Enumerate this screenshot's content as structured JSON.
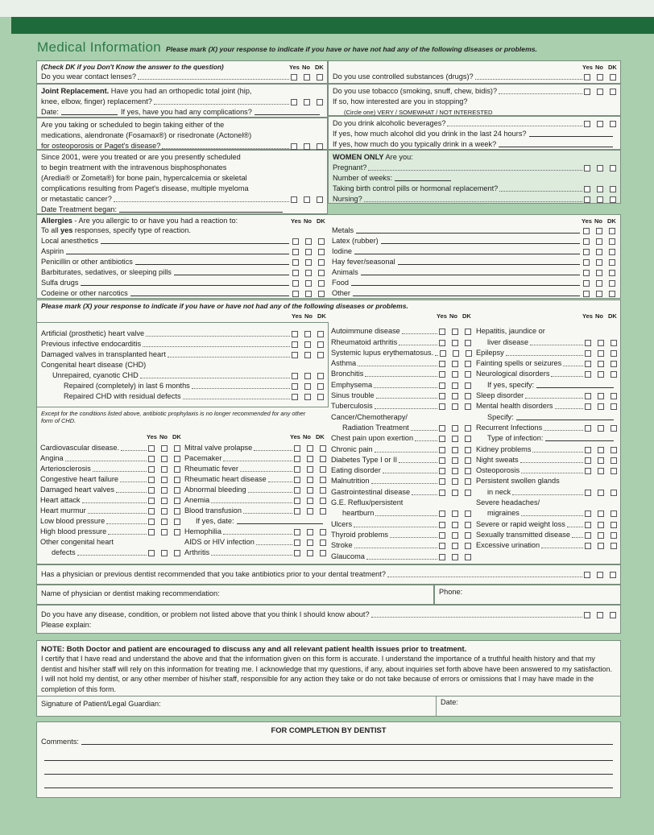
{
  "title": "Medical Information",
  "subtitle": "Please mark (X) your response to indicate if you have or have not had any of the following diseases or problems.",
  "cols": {
    "yes": "Yes",
    "no": "No",
    "dk": "DK"
  },
  "top_left": {
    "dk_note": "(Check DK if you Don't Know the answer to the question)",
    "contact": "Do you wear contact lenses?",
    "joint_bold": "Joint Replacement.",
    "joint_text1": " Have you had an orthopedic total joint (hip,",
    "joint_text2": "knee, elbow, finger) replacement?",
    "joint_date": "Date:",
    "joint_complications": "If yes, have you had any complications?",
    "meds1": "Are you taking or scheduled to begin taking either of the",
    "meds2": "medications, alendronate (Fosamax®) or risedronate (Actonel®)",
    "meds3": "for osteoporosis or Paget's disease?",
    "bis1": "Since 2001, were you treated or are you presently scheduled",
    "bis2": "to begin treatment with the intravenous bisphosphonates",
    "bis3": "(Aredia® or Zometa®) for bone pain, hypercalcemia or skeletal",
    "bis4": "complications resulting from Paget's disease, multiple myeloma",
    "bis5": "or metastatic cancer?",
    "bis_date": "Date Treatment began:"
  },
  "top_right": {
    "drugs": "Do you use controlled substances (drugs)?",
    "tobacco": "Do you use tobacco (smoking, snuff, chew, bidis)?",
    "tobacco_q": "If so, how interested are you in stopping?",
    "tobacco_circle": "(Circle one)  VERY  /  SOMEWHAT  /  NOT INTERESTED",
    "alcohol": "Do you drink alcoholic beverages?",
    "alcohol_24": "If yes, how much alcohol did you drink in the last 24 hours?",
    "alcohol_week": "If yes, how much do you typically drink in a week?",
    "women_bold": "WOMEN ONLY",
    "women_text": "  Are you:",
    "pregnant": "Pregnant?",
    "weeks": "Number of weeks:",
    "birth_control": "Taking birth control pills or hormonal replacement?",
    "nursing": "Nursing?"
  },
  "allergies": {
    "bold": "Allergies",
    "text": " - Are you allergic to or have you had a reaction to:",
    "text2a": "To all ",
    "text2b": "yes",
    "text2c": " responses, specify type of reaction.",
    "left": [
      "Local anesthetics",
      "Aspirin",
      "Penicillin or other antibiotics",
      "Barbiturates, sedatives, or sleeping pills",
      "Sulfa drugs",
      "Codeine or other narcotics"
    ],
    "right": [
      "Metals",
      "Latex (rubber)",
      "Iodine",
      "Hay fever/seasonal",
      "Animals",
      "Food",
      "Other"
    ]
  },
  "diseases": {
    "header": "Please mark (X) your response to indicate if you have or have not had any of the following diseases or problems.",
    "chd": [
      {
        "label": "Artificial (prosthetic) heart valve",
        "kind": "check"
      },
      {
        "label": "Previous infective endocarditis",
        "kind": "check"
      },
      {
        "label": "Damaged valves in transplanted heart",
        "kind": "check"
      },
      {
        "label": "Congenital heart disease (CHD)",
        "kind": "text"
      },
      {
        "label": "Unrepaired, cyanotic CHD",
        "kind": "check",
        "indent": 1
      },
      {
        "label": "Repaired (completely) in last 6 months",
        "kind": "check",
        "indent": 2
      },
      {
        "label": "Repaired CHD with residual defects",
        "kind": "check",
        "indent": 2
      }
    ],
    "chd_note": "Except for the conditions listed above, antibiotic prophylaxis is no longer recommended for any other form of CHD.",
    "col1": [
      {
        "label": "Cardiovascular disease.",
        "kind": "check"
      },
      {
        "label": "Angina",
        "kind": "check"
      },
      {
        "label": "Arteriosclerosis",
        "kind": "check"
      },
      {
        "label": "Congestive heart failure",
        "kind": "check"
      },
      {
        "label": "Damaged heart valves",
        "kind": "check"
      },
      {
        "label": "Heart attack",
        "kind": "check"
      },
      {
        "label": "Heart murmur",
        "kind": "check"
      },
      {
        "label": "Low blood pressure",
        "kind": "check"
      },
      {
        "label": "High blood pressure",
        "kind": "check"
      },
      {
        "label": "Other congenital heart",
        "kind": "text"
      },
      {
        "label": "defects",
        "kind": "check",
        "indent": 1
      }
    ],
    "col2": [
      {
        "label": "Mitral valve prolapse",
        "kind": "check"
      },
      {
        "label": "Pacemaker",
        "kind": "check"
      },
      {
        "label": "Rheumatic fever",
        "kind": "check"
      },
      {
        "label": "Rheumatic heart disease",
        "kind": "check"
      },
      {
        "label": "Abnormal bleeding",
        "kind": "check"
      },
      {
        "label": "Anemia",
        "kind": "check"
      },
      {
        "label": "Blood transfusion",
        "kind": "check"
      },
      {
        "label": "If yes, date:",
        "kind": "fill",
        "indent": 1
      },
      {
        "label": "Hemophilia",
        "kind": "check"
      },
      {
        "label": "AIDS or HIV infection",
        "kind": "check"
      },
      {
        "label": "Arthritis",
        "kind": "check"
      }
    ],
    "col3": [
      {
        "label": "Autoimmune disease",
        "kind": "check"
      },
      {
        "label": "Rheumatoid arthritis",
        "kind": "check"
      },
      {
        "label": "Systemic lupus erythematosus.",
        "kind": "check"
      },
      {
        "label": "Asthma",
        "kind": "check"
      },
      {
        "label": "Bronchitis",
        "kind": "check"
      },
      {
        "label": "Emphysema",
        "kind": "check"
      },
      {
        "label": "Sinus trouble",
        "kind": "check"
      },
      {
        "label": "Tuberculosis",
        "kind": "check"
      },
      {
        "label": "Cancer/Chemotherapy/",
        "kind": "text"
      },
      {
        "label": "Radiation Treatment",
        "kind": "check",
        "indent": 1
      },
      {
        "label": "Chest pain upon exertion",
        "kind": "check"
      },
      {
        "label": "Chronic pain",
        "kind": "check"
      },
      {
        "label": "Diabetes  Type I  or  II",
        "kind": "check"
      },
      {
        "label": "Eating disorder",
        "kind": "check"
      },
      {
        "label": "Malnutrition",
        "kind": "check"
      },
      {
        "label": "Gastrointestinal disease",
        "kind": "check"
      },
      {
        "label": "G.E. Reflux/persistent",
        "kind": "text"
      },
      {
        "label": "heartburn",
        "kind": "check",
        "indent": 1
      },
      {
        "label": "Ulcers",
        "kind": "check"
      },
      {
        "label": "Thyroid problems",
        "kind": "check"
      },
      {
        "label": "Stroke",
        "kind": "check"
      },
      {
        "label": "Glaucoma",
        "kind": "check"
      }
    ],
    "col4": [
      {
        "label": "Hepatitis, jaundice or",
        "kind": "text"
      },
      {
        "label": "liver disease",
        "kind": "check",
        "indent": 1
      },
      {
        "label": "Epilepsy",
        "kind": "check"
      },
      {
        "label": "Fainting spells or seizures",
        "kind": "check"
      },
      {
        "label": "Neurological disorders",
        "kind": "check"
      },
      {
        "label": "If yes, specify:",
        "kind": "fill",
        "indent": 1
      },
      {
        "label": "Sleep disorder",
        "kind": "check"
      },
      {
        "label": "Mental health disorders",
        "kind": "check"
      },
      {
        "label": "Specify:",
        "kind": "fill",
        "indent": 1
      },
      {
        "label": "Recurrent Infections",
        "kind": "check"
      },
      {
        "label": "Type of infection:",
        "kind": "fill",
        "indent": 1
      },
      {
        "label": "Kidney problems",
        "kind": "check"
      },
      {
        "label": "Night sweats",
        "kind": "check"
      },
      {
        "label": "Osteoporosis",
        "kind": "check"
      },
      {
        "label": "Persistent swollen glands",
        "kind": "text"
      },
      {
        "label": "in neck",
        "kind": "check",
        "indent": 1
      },
      {
        "label": "Severe headaches/",
        "kind": "text"
      },
      {
        "label": "migraines",
        "kind": "check",
        "indent": 1
      },
      {
        "label": "Severe or rapid weight loss",
        "kind": "check"
      },
      {
        "label": "Sexually transmitted disease",
        "kind": "check"
      },
      {
        "label": "Excessive urination",
        "kind": "check"
      }
    ]
  },
  "antibiotics": "Has a physician or previous dentist recommended that you take antibiotics prior to your dental treatment?",
  "physician_name": "Name of physician or dentist making recommendation:",
  "phone": "Phone:",
  "other_disease": "Do you have any disease, condition, or problem not listed above that you think I should know about?",
  "please_explain": "Please explain:",
  "note": {
    "bold": "NOTE:  Both Doctor and patient are encouraged to discuss any and all relevant patient health issues prior to treatment.",
    "text": "I certify that I have read and understand the above and that the information given on this form is accurate. I understand the importance of a truthful health history and that my dentist and his/her staff will rely on this information for treating me. I acknowledge that my questions, if any, about inquiries set forth above have been answered to my satisfaction. I will not hold my dentist, or any other member of his/her staff, responsible for any action they take or do not take because of errors or omissions that I may have made in the completion of this form.",
    "signature": "Signature of Patient/Legal Guardian:",
    "date": "Date:"
  },
  "dentist": {
    "title": "FOR COMPLETION BY DENTIST",
    "comments": "Comments:"
  },
  "colors": {
    "background": "#a9cfae",
    "bar": "#1f6a3a",
    "title": "#2d7a48"
  }
}
